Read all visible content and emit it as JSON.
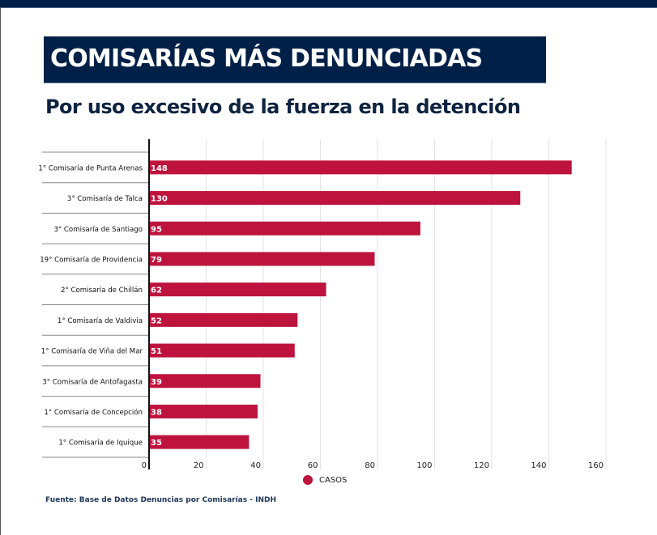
{
  "header": {
    "title": "COMISARÍAS MÁS DENUNCIADAS",
    "subtitle": "Por uso excesivo de la fuerza en la detención"
  },
  "source": "Fuente: Base de Datos Denuncias por Comisarías - INDH",
  "colors": {
    "bar": "#bd133d",
    "header_bg": "#012047",
    "grid": "#e3e3e3"
  },
  "chart_data": {
    "type": "bar",
    "orientation": "horizontal",
    "title": "COMISARÍAS MÁS DENUNCIADAS",
    "subtitle": "Por uso excesivo de la fuerza en la detención",
    "categories": [
      "1° Comisaría de Punta Arenas",
      "3° Comisaría de Talca",
      "3° Comisaría de Santiago",
      "19° Comisaría de Providencia",
      "2° Comisaría de Chillán",
      "1° Comisaría de Valdivia",
      "1° Comisaría de Viña del Mar",
      "3° Comisaría de Antofagasta",
      "1° Comisaría de Concepción",
      "1° Comisaría de Iquique"
    ],
    "series": [
      {
        "name": "CASOS",
        "values": [
          148,
          130,
          95,
          79,
          62,
          52,
          51,
          39,
          38,
          35
        ]
      }
    ],
    "xlim": [
      0,
      160
    ],
    "xticks": [
      0,
      20,
      40,
      60,
      80,
      100,
      120,
      140,
      160
    ],
    "xlabel": "",
    "ylabel": "",
    "grid": true,
    "legend": "bottom-center",
    "data_labels": true
  }
}
